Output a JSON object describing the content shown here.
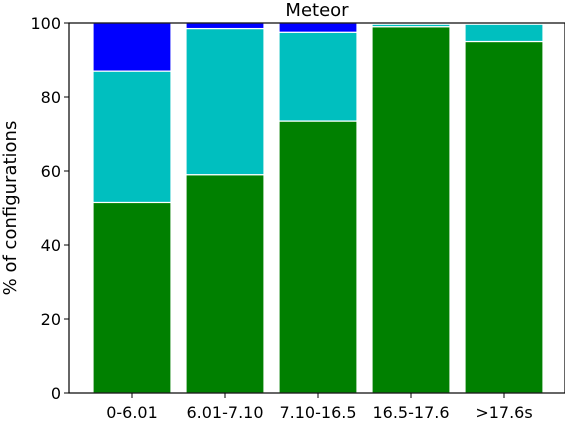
{
  "chart_data": {
    "type": "bar",
    "stacked": true,
    "title": "Meteor",
    "xlabel": "",
    "ylabel": "% of configurations",
    "ylim": [
      0,
      100
    ],
    "yticks": [
      0,
      20,
      40,
      60,
      80,
      100
    ],
    "categories": [
      "0-6.01",
      "6.01-7.10",
      "7.10-16.5",
      "16.5-17.6",
      ">17.6s"
    ],
    "series": [
      {
        "color": "#008000",
        "values": [
          51.5,
          59,
          73.5,
          99,
          95
        ]
      },
      {
        "color": "#00BFBF",
        "values": [
          35.5,
          39.5,
          24,
          0.7,
          4.7
        ]
      },
      {
        "color": "#0000FF",
        "values": [
          13,
          1.5,
          2.5,
          0.3,
          0.3
        ]
      }
    ],
    "grid": false,
    "legend": false
  }
}
